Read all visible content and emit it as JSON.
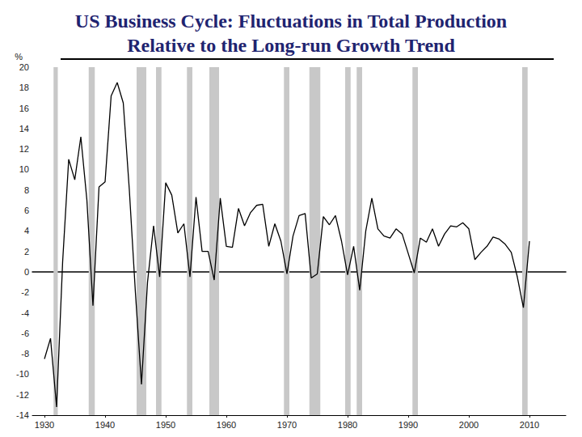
{
  "chart_data": {
    "type": "line",
    "title": "US Business Cycle: Fluctuations in Total Production\nRelative to the Long-run Growth Trend",
    "y_label": "%",
    "color": "#000000",
    "x": [
      1930,
      1931,
      1932,
      1933,
      1934,
      1935,
      1936,
      1937,
      1938,
      1939,
      1940,
      1941,
      1942,
      1943,
      1944,
      1945,
      1946,
      1947,
      1948,
      1949,
      1950,
      1951,
      1952,
      1953,
      1954,
      1955,
      1956,
      1957,
      1958,
      1959,
      1960,
      1961,
      1962,
      1963,
      1964,
      1965,
      1966,
      1967,
      1968,
      1969,
      1970,
      1971,
      1972,
      1973,
      1974,
      1975,
      1976,
      1977,
      1978,
      1979,
      1980,
      1981,
      1982,
      1983,
      1984,
      1985,
      1986,
      1987,
      1988,
      1989,
      1990,
      1991,
      1992,
      1993,
      1994,
      1995,
      1996,
      1997,
      1998,
      1999,
      2000,
      2001,
      2002,
      2003,
      2004,
      2005,
      2006,
      2007,
      2008,
      2009,
      2010
    ],
    "values": [
      -8.5,
      -6.5,
      -13.2,
      1,
      11,
      9,
      13.2,
      7,
      -3.3,
      8.3,
      8.8,
      17.2,
      18.5,
      16.5,
      8,
      -2,
      -11,
      -1,
      4.5,
      -0.5,
      8.7,
      7.5,
      3.8,
      4.7,
      -0.5,
      7.3,
      2,
      2,
      -0.8,
      7.2,
      2.5,
      2.4,
      6.2,
      4.5,
      5.8,
      6.5,
      6.6,
      2.5,
      4.7,
      3,
      -0.2,
      3.5,
      5.5,
      5.7,
      -0.6,
      -0.2,
      5.4,
      4.6,
      5.5,
      3,
      -0.3,
      2.5,
      -1.8,
      4,
      7.2,
      4.2,
      3.5,
      3.3,
      4.2,
      3.7,
      1.8,
      -0.1,
      3.3,
      2.9,
      4.2,
      2.5,
      3.7,
      4.5,
      4.4,
      4.8,
      4.2,
      1.2,
      1.9,
      2.5,
      3.4,
      3.2,
      2.7,
      1.9,
      -0.5,
      -3.5,
      3
    ],
    "recessions": [
      [
        1931.5,
        1932.2
      ],
      [
        1937.3,
        1938.3
      ],
      [
        1945.2,
        1946.8
      ],
      [
        1948.4,
        1949.3
      ],
      [
        1953.5,
        1954.4
      ],
      [
        1957.2,
        1958.8
      ],
      [
        1969.5,
        1970.4
      ],
      [
        1973.7,
        1975.5
      ],
      [
        1979.6,
        1980.5
      ],
      [
        1981.5,
        1982.4
      ],
      [
        1990.7,
        1991.6
      ],
      [
        2008.8,
        2009.7
      ]
    ],
    "xlim": [
      1928,
      2016
    ],
    "xticks": [
      1930,
      1940,
      1950,
      1960,
      1970,
      1980,
      1990,
      2000,
      2010
    ],
    "ylim": [
      -14,
      20
    ],
    "yticks": [
      -14,
      -12,
      -10,
      -8,
      -6,
      -4,
      -2,
      0,
      2,
      4,
      6,
      8,
      10,
      12,
      14,
      16,
      18,
      20
    ],
    "grid": false
  }
}
